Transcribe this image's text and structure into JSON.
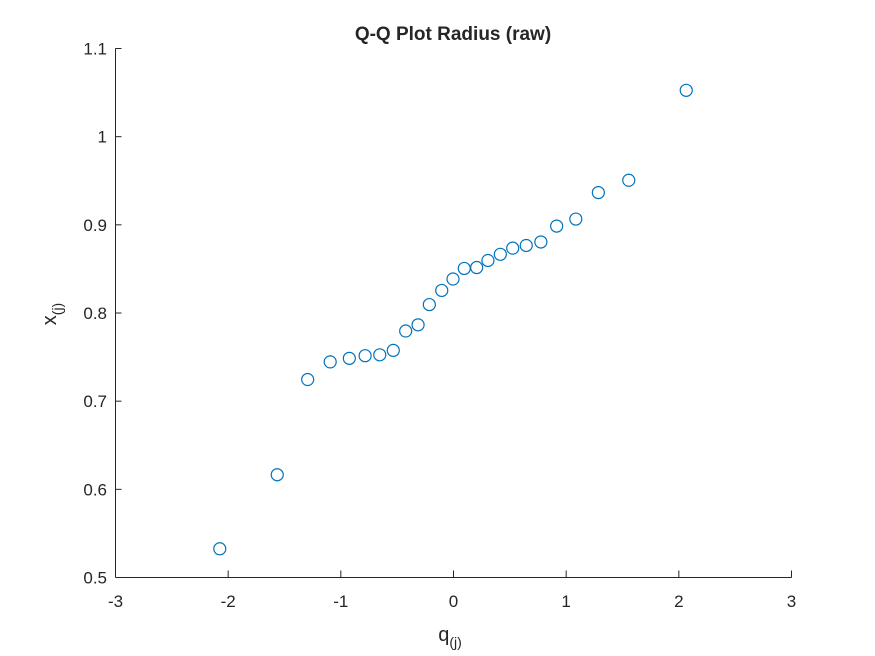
{
  "chart_data": {
    "type": "scatter",
    "title": "Q-Q Plot Radius (raw)",
    "xlabel": {
      "base": "q",
      "subscript": "(j)"
    },
    "ylabel": {
      "base": "x",
      "subscript": "(j)"
    },
    "xlim": [
      -3,
      3
    ],
    "ylim": [
      0.5,
      1.1
    ],
    "xticks": [
      -3,
      -2,
      -1,
      0,
      1,
      2,
      3
    ],
    "yticks": [
      0.5,
      0.6,
      0.7,
      0.8,
      0.9,
      1,
      1.1
    ],
    "xtick_labels": [
      "-3",
      "-2",
      "-1",
      "0",
      "1",
      "2",
      "3"
    ],
    "ytick_labels": [
      "0.5",
      "0.6",
      "0.7",
      "0.8",
      "0.9",
      "1",
      "1.1"
    ],
    "grid": false,
    "marker": "open-circle",
    "color": "#0072BD",
    "points": [
      {
        "x": -2.07,
        "y": 0.532
      },
      {
        "x": -1.56,
        "y": 0.616
      },
      {
        "x": -1.29,
        "y": 0.724
      },
      {
        "x": -1.09,
        "y": 0.744
      },
      {
        "x": -0.92,
        "y": 0.748
      },
      {
        "x": -0.78,
        "y": 0.751
      },
      {
        "x": -0.65,
        "y": 0.752
      },
      {
        "x": -0.53,
        "y": 0.757
      },
      {
        "x": -0.42,
        "y": 0.779
      },
      {
        "x": -0.31,
        "y": 0.786
      },
      {
        "x": -0.21,
        "y": 0.809
      },
      {
        "x": -0.1,
        "y": 0.825
      },
      {
        "x": 0.0,
        "y": 0.838
      },
      {
        "x": 0.1,
        "y": 0.85
      },
      {
        "x": 0.21,
        "y": 0.851
      },
      {
        "x": 0.31,
        "y": 0.859
      },
      {
        "x": 0.42,
        "y": 0.866
      },
      {
        "x": 0.53,
        "y": 0.873
      },
      {
        "x": 0.65,
        "y": 0.876
      },
      {
        "x": 0.78,
        "y": 0.88
      },
      {
        "x": 0.92,
        "y": 0.898
      },
      {
        "x": 1.09,
        "y": 0.906
      },
      {
        "x": 1.29,
        "y": 0.936
      },
      {
        "x": 1.56,
        "y": 0.95
      },
      {
        "x": 2.07,
        "y": 1.052
      }
    ]
  }
}
